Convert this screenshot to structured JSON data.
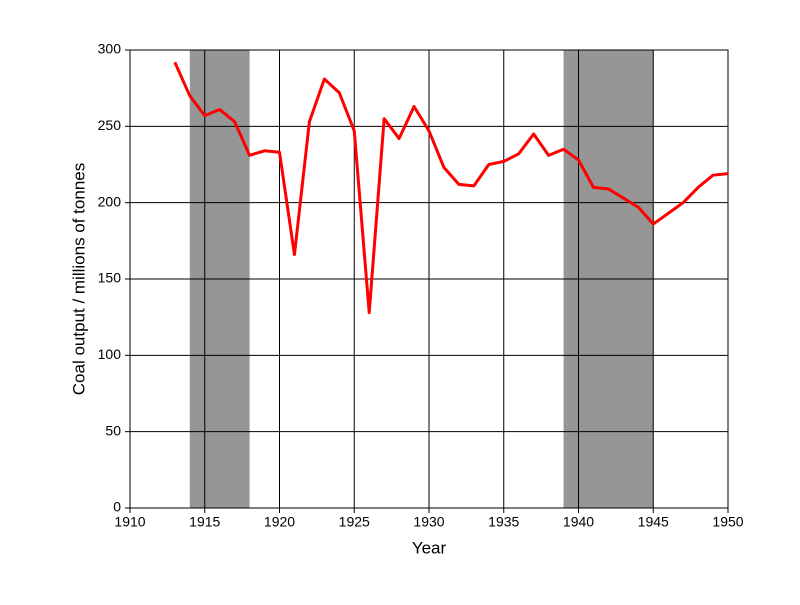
{
  "chart_data": {
    "type": "line",
    "x_label": "Year",
    "y_label": "Coal output / millions of tonnes",
    "x": [
      1913,
      1914,
      1915,
      1916,
      1917,
      1918,
      1919,
      1920,
      1921,
      1922,
      1923,
      1924,
      1925,
      1926,
      1927,
      1928,
      1929,
      1930,
      1931,
      1932,
      1933,
      1934,
      1935,
      1936,
      1937,
      1938,
      1939,
      1940,
      1941,
      1942,
      1943,
      1944,
      1945,
      1946,
      1947,
      1948,
      1949,
      1950
    ],
    "values": [
      292,
      270,
      257,
      261,
      253,
      231,
      234,
      233,
      166,
      253,
      281,
      272,
      247,
      128,
      255,
      242,
      263,
      247,
      223,
      212,
      211,
      225,
      227,
      232,
      245,
      231,
      235,
      228,
      210,
      209,
      203,
      197,
      186,
      193,
      200,
      210,
      218,
      219
    ],
    "color": "#ff0000",
    "shaded_ranges": [
      [
        1914,
        1918
      ],
      [
        1939,
        1945
      ]
    ],
    "shade_color": "#969696",
    "xlim": [
      1910,
      1950
    ],
    "xticks": [
      1910,
      1915,
      1920,
      1925,
      1930,
      1935,
      1940,
      1945,
      1950
    ],
    "ylim": [
      0,
      300
    ],
    "yticks": [
      0,
      50,
      100,
      150,
      200,
      250,
      300
    ],
    "grid": true
  }
}
